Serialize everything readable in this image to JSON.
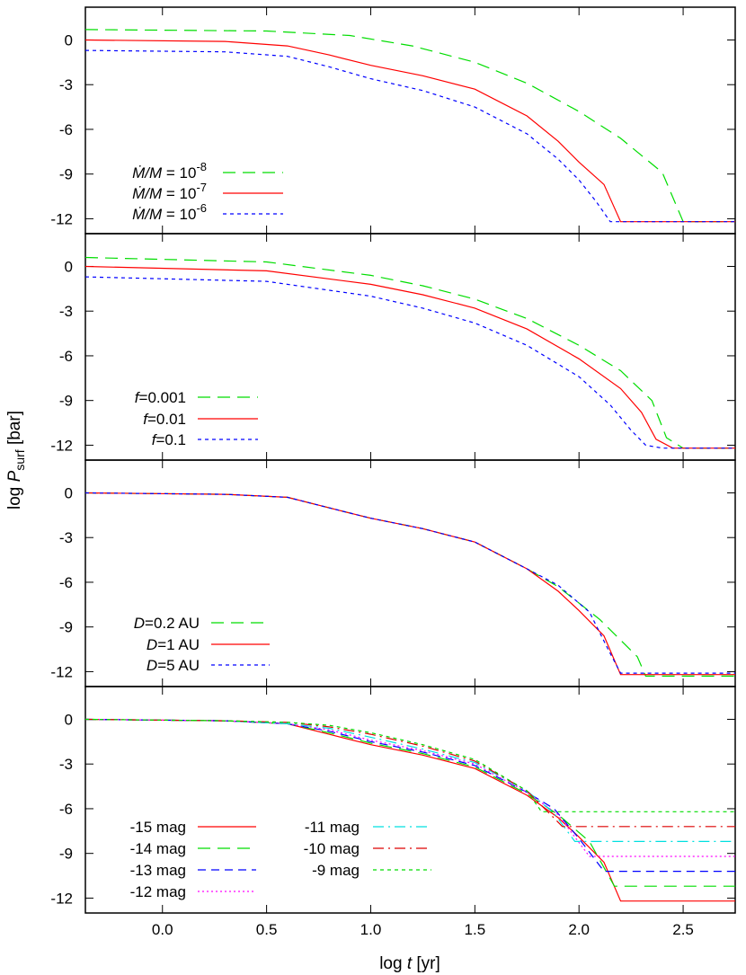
{
  "chart_data": {
    "type": "line",
    "xlabel": "log t [yr]",
    "ylabel": "log P_surf [bar]",
    "xlim": [
      -0.37,
      2.75
    ],
    "ylim": [
      -13.0,
      2.2
    ],
    "x_ticks": [
      0.0,
      0.5,
      1.0,
      1.5,
      2.0,
      2.5
    ],
    "x_tick_labels": [
      "0.0",
      "0.5",
      "1.0",
      "1.5",
      "2.0",
      "2.5"
    ],
    "y_ticks": [
      0,
      -3,
      -6,
      -9,
      -12
    ],
    "y_tick_labels": [
      "0",
      "-3",
      "-6",
      "-9",
      "-12"
    ],
    "grid": false,
    "panels": [
      {
        "legend_placement": "bottom-left",
        "series": [
          {
            "name": "Ṁ/M = 10^-8",
            "color": "#00dd00",
            "dash": "long-dash",
            "x": [
              -0.37,
              0.5,
              0.9,
              1.2,
              1.5,
              1.75,
              2.0,
              2.2,
              2.4,
              2.5,
              2.75
            ],
            "y": [
              0.7,
              0.6,
              0.3,
              -0.4,
              -1.5,
              -2.9,
              -4.8,
              -6.6,
              -8.9,
              -12.2,
              -12.2
            ]
          },
          {
            "name": "Ṁ/M = 10^-7",
            "color": "#ff0000",
            "dash": "solid",
            "x": [
              -0.37,
              0.3,
              0.6,
              0.8,
              1.0,
              1.25,
              1.5,
              1.75,
              1.9,
              2.0,
              2.12,
              2.2,
              2.75
            ],
            "y": [
              0.0,
              -0.1,
              -0.4,
              -1.0,
              -1.7,
              -2.4,
              -3.3,
              -5.1,
              -6.8,
              -8.2,
              -9.7,
              -12.2,
              -12.2
            ]
          },
          {
            "name": "Ṁ/M = 10^-6",
            "color": "#0000ff",
            "dash": "short-dash",
            "x": [
              -0.37,
              0.3,
              0.6,
              0.8,
              1.0,
              1.25,
              1.5,
              1.75,
              1.9,
              2.0,
              2.08,
              2.15,
              2.75
            ],
            "y": [
              -0.7,
              -0.8,
              -1.1,
              -1.8,
              -2.6,
              -3.4,
              -4.5,
              -6.3,
              -8.0,
              -9.4,
              -10.8,
              -12.2,
              -12.2
            ]
          }
        ]
      },
      {
        "legend_placement": "bottom-left",
        "series": [
          {
            "name": "f=0.001",
            "color": "#00dd00",
            "dash": "long-dash",
            "x": [
              -0.37,
              0.5,
              1.0,
              1.25,
              1.5,
              1.75,
              2.0,
              2.2,
              2.35,
              2.42,
              2.5,
              2.75
            ],
            "y": [
              0.6,
              0.3,
              -0.6,
              -1.3,
              -2.2,
              -3.5,
              -5.3,
              -7.0,
              -9.0,
              -11.5,
              -12.2,
              -12.2
            ]
          },
          {
            "name": "f=0.01",
            "color": "#ff0000",
            "dash": "solid",
            "x": [
              -0.37,
              0.5,
              1.0,
              1.25,
              1.5,
              1.75,
              2.0,
              2.2,
              2.3,
              2.37,
              2.45,
              2.75
            ],
            "y": [
              0.0,
              -0.3,
              -1.2,
              -1.9,
              -2.8,
              -4.2,
              -6.2,
              -8.2,
              -9.8,
              -11.6,
              -12.2,
              -12.2
            ]
          },
          {
            "name": "f=0.1",
            "color": "#0000ff",
            "dash": "short-dash",
            "x": [
              -0.37,
              0.5,
              1.0,
              1.25,
              1.5,
              1.75,
              2.0,
              2.15,
              2.25,
              2.32,
              2.4,
              2.75
            ],
            "y": [
              -0.7,
              -1.0,
              -2.0,
              -2.8,
              -3.8,
              -5.3,
              -7.4,
              -9.3,
              -11.0,
              -12.0,
              -12.2,
              -12.2
            ]
          }
        ]
      },
      {
        "legend_placement": "bottom-left",
        "series": [
          {
            "name": "D=0.2 AU",
            "color": "#00dd00",
            "dash": "long-dash",
            "x": [
              -0.37,
              0.3,
              0.6,
              0.8,
              1.0,
              1.25,
              1.5,
              1.75,
              1.9,
              2.1,
              2.28,
              2.32,
              2.75
            ],
            "y": [
              0.0,
              -0.1,
              -0.3,
              -1.0,
              -1.7,
              -2.4,
              -3.3,
              -5.1,
              -6.3,
              -8.5,
              -11.0,
              -12.3,
              -12.3
            ]
          },
          {
            "name": "D=1 AU",
            "color": "#ff0000",
            "dash": "solid",
            "x": [
              -0.37,
              0.3,
              0.6,
              0.8,
              1.0,
              1.25,
              1.5,
              1.75,
              1.9,
              2.0,
              2.12,
              2.2,
              2.75
            ],
            "y": [
              0.0,
              -0.1,
              -0.3,
              -1.0,
              -1.7,
              -2.4,
              -3.3,
              -5.1,
              -6.6,
              -7.9,
              -9.6,
              -12.2,
              -12.2
            ]
          },
          {
            "name": "D=5 AU",
            "color": "#0000ff",
            "dash": "short-dash",
            "x": [
              -0.37,
              0.3,
              0.6,
              0.8,
              1.0,
              1.25,
              1.5,
              1.75,
              1.9,
              2.05,
              2.14,
              2.2,
              2.75
            ],
            "y": [
              0.0,
              -0.1,
              -0.3,
              -1.0,
              -1.7,
              -2.4,
              -3.3,
              -5.1,
              -6.2,
              -8.0,
              -10.5,
              -12.1,
              -12.1
            ]
          }
        ]
      },
      {
        "legend_placement": "bottom-left",
        "legend_columns": 2,
        "series": [
          {
            "name": "-15 mag",
            "color": "#ff0000",
            "dash": "solid",
            "x": [
              -0.37,
              0.3,
              0.6,
              0.8,
              1.0,
              1.25,
              1.5,
              1.75,
              1.9,
              2.0,
              2.12,
              2.2,
              2.75
            ],
            "y": [
              0.0,
              -0.1,
              -0.3,
              -1.0,
              -1.7,
              -2.4,
              -3.3,
              -5.1,
              -6.6,
              -7.9,
              -9.6,
              -12.2,
              -12.2
            ]
          },
          {
            "name": "-14 mag",
            "color": "#00dd00",
            "dash": "long-dash",
            "x": [
              -0.37,
              0.3,
              0.6,
              0.8,
              1.0,
              1.25,
              1.5,
              1.75,
              1.9,
              2.05,
              2.17,
              2.75
            ],
            "y": [
              0.0,
              -0.1,
              -0.3,
              -0.9,
              -1.6,
              -2.3,
              -3.2,
              -5.0,
              -6.4,
              -8.2,
              -11.2,
              -11.2
            ]
          },
          {
            "name": "-13 mag",
            "color": "#0000ff",
            "dash": "dash",
            "x": [
              -0.37,
              0.3,
              0.6,
              0.8,
              1.0,
              1.25,
              1.5,
              1.75,
              1.88,
              2.0,
              2.12,
              2.75
            ],
            "y": [
              0.0,
              -0.1,
              -0.3,
              -0.8,
              -1.5,
              -2.2,
              -3.1,
              -4.9,
              -6.0,
              -8.0,
              -10.2,
              -10.2
            ]
          },
          {
            "name": "-12 mag",
            "color": "#ff00ff",
            "dash": "dot",
            "x": [
              -0.37,
              0.3,
              0.6,
              0.8,
              1.0,
              1.25,
              1.5,
              1.75,
              1.9,
              2.05,
              2.75
            ],
            "y": [
              0.0,
              -0.1,
              -0.3,
              -0.7,
              -1.4,
              -2.1,
              -3.0,
              -4.9,
              -6.4,
              -9.2,
              -9.2
            ]
          },
          {
            "name": "-11 mag",
            "color": "#00e0e0",
            "dash": "dash-dot",
            "x": [
              -0.37,
              0.3,
              0.6,
              0.8,
              1.0,
              1.25,
              1.5,
              1.75,
              1.88,
              1.98,
              2.75
            ],
            "y": [
              0.0,
              -0.1,
              -0.3,
              -0.6,
              -1.2,
              -2.0,
              -2.9,
              -4.8,
              -6.3,
              -8.2,
              -8.2
            ]
          },
          {
            "name": "-10 mag",
            "color": "#dd0000",
            "dash": "dash-dot",
            "x": [
              -0.37,
              0.3,
              0.6,
              0.8,
              1.0,
              1.25,
              1.5,
              1.75,
              1.85,
              1.92,
              2.75
            ],
            "y": [
              0.0,
              -0.1,
              -0.2,
              -0.5,
              -1.0,
              -1.8,
              -2.8,
              -4.8,
              -6.2,
              -7.2,
              -7.2
            ]
          },
          {
            "name": "-9 mag",
            "color": "#00dd00",
            "dash": "short-dash",
            "x": [
              -0.37,
              0.3,
              0.6,
              0.8,
              1.0,
              1.25,
              1.5,
              1.75,
              1.82,
              2.75
            ],
            "y": [
              0.0,
              -0.1,
              -0.2,
              -0.4,
              -0.9,
              -1.7,
              -2.7,
              -4.8,
              -6.2,
              -6.2
            ]
          }
        ]
      }
    ]
  }
}
